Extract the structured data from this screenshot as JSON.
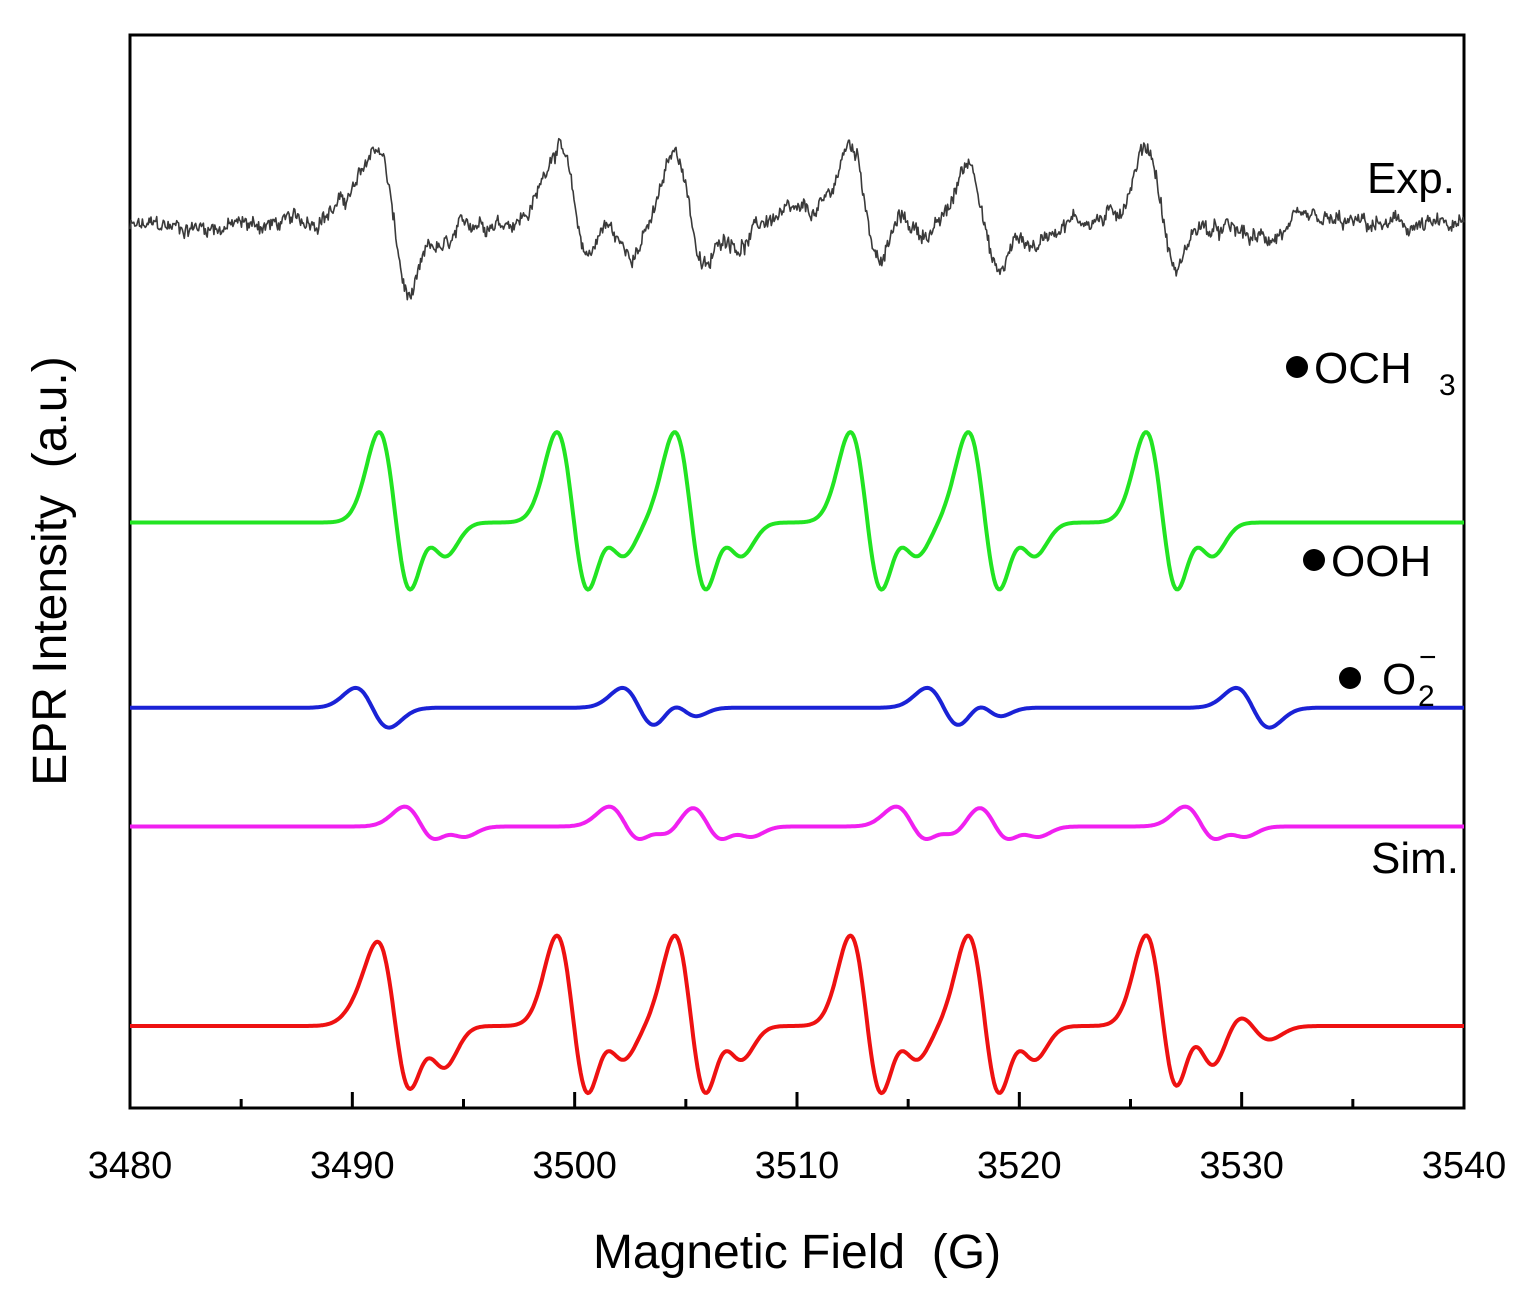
{
  "chart_data": {
    "type": "line",
    "title": "",
    "xlabel": "Magnetic Field  (G)",
    "ylabel": "EPR Intensity  (a.u.)",
    "xlim": [
      3480,
      3540
    ],
    "x_major_ticks": [
      3480,
      3490,
      3500,
      3510,
      3520,
      3530,
      3540
    ],
    "x_minor_step": 5,
    "y_ticks": "none",
    "grid": false,
    "legend": "inline labels at right of each trace",
    "series": [
      {
        "name": "Exp.",
        "label": "Exp.",
        "color": "#3a3a3a",
        "noisy": true,
        "baseline": 0.0,
        "scale": 0.82,
        "lines": [
          {
            "center": 3491.95,
            "amp": 1.0,
            "width": 0.75
          },
          {
            "center": 3493.65,
            "amp": 0.3,
            "width": 0.65
          },
          {
            "center": 3499.95,
            "amp": 0.9,
            "width": 0.75
          },
          {
            "center": 3501.65,
            "amp": 0.3,
            "width": 0.65
          },
          {
            "center": 3505.25,
            "amp": 0.9,
            "width": 0.75
          },
          {
            "center": 3506.95,
            "amp": 0.3,
            "width": 0.65
          },
          {
            "center": 3513.15,
            "amp": 0.9,
            "width": 0.75
          },
          {
            "center": 3514.85,
            "amp": 0.3,
            "width": 0.65
          },
          {
            "center": 3518.45,
            "amp": 0.9,
            "width": 0.75
          },
          {
            "center": 3520.15,
            "amp": 0.3,
            "width": 0.65
          },
          {
            "center": 3526.45,
            "amp": 0.95,
            "width": 0.75
          },
          {
            "center": 3528.15,
            "amp": 0.3,
            "width": 0.65
          },
          {
            "center": 3491.0,
            "amp": 0.25,
            "width": 1.2
          },
          {
            "center": 3502.0,
            "amp": 0.22,
            "width": 1.2
          },
          {
            "center": 3516.0,
            "amp": 0.22,
            "width": 1.2
          },
          {
            "center": 3529.5,
            "amp": 0.22,
            "width": 1.2
          }
        ]
      },
      {
        "name": "•OCH3",
        "label_main": "OCH",
        "label_sub": "3",
        "color": "#22e422",
        "baseline": -3.1,
        "scale": 0.95,
        "lines": [
          {
            "center": 3491.95,
            "amp": 1.0,
            "width": 0.75
          },
          {
            "center": 3493.65,
            "amp": 0.33,
            "width": 0.65
          },
          {
            "center": 3499.95,
            "amp": 1.0,
            "width": 0.75
          },
          {
            "center": 3501.65,
            "amp": 0.33,
            "width": 0.65
          },
          {
            "center": 3505.25,
            "amp": 1.0,
            "width": 0.75
          },
          {
            "center": 3506.95,
            "amp": 0.33,
            "width": 0.65
          },
          {
            "center": 3513.15,
            "amp": 1.0,
            "width": 0.75
          },
          {
            "center": 3514.85,
            "amp": 0.33,
            "width": 0.65
          },
          {
            "center": 3518.45,
            "amp": 1.0,
            "width": 0.75
          },
          {
            "center": 3520.15,
            "amp": 0.33,
            "width": 0.65
          },
          {
            "center": 3526.45,
            "amp": 1.0,
            "width": 0.75
          },
          {
            "center": 3528.15,
            "amp": 0.33,
            "width": 0.65
          }
        ]
      },
      {
        "name": "•OOH",
        "label_main": "OOH",
        "color": "#1a22d6",
        "baseline": -5.05,
        "scale": 0.95,
        "lines": [
          {
            "center": 3490.9,
            "amp": 0.22,
            "width": 0.75
          },
          {
            "center": 3502.9,
            "amp": 0.22,
            "width": 0.75
          },
          {
            "center": 3504.9,
            "amp": 0.09,
            "width": 0.6
          },
          {
            "center": 3516.6,
            "amp": 0.22,
            "width": 0.75
          },
          {
            "center": 3518.6,
            "amp": 0.09,
            "width": 0.6
          },
          {
            "center": 3530.5,
            "amp": 0.22,
            "width": 0.75
          }
        ]
      },
      {
        "name": "• O2−",
        "label_main": "O",
        "label_sub": "2",
        "label_sup": "−",
        "color": "#f020f0",
        "baseline": -6.3,
        "scale": 0.95,
        "lines": [
          {
            "center": 3493.1,
            "amp": 0.22,
            "width": 0.75
          },
          {
            "center": 3494.6,
            "amp": 0.09,
            "width": 0.6
          },
          {
            "center": 3502.3,
            "amp": 0.22,
            "width": 0.75
          },
          {
            "center": 3503.8,
            "amp": 0.09,
            "width": 0.6
          },
          {
            "center": 3506.0,
            "amp": 0.22,
            "width": 0.75
          },
          {
            "center": 3507.5,
            "amp": 0.09,
            "width": 0.6
          },
          {
            "center": 3515.2,
            "amp": 0.22,
            "width": 0.75
          },
          {
            "center": 3516.7,
            "amp": 0.09,
            "width": 0.6
          },
          {
            "center": 3518.9,
            "amp": 0.22,
            "width": 0.75
          },
          {
            "center": 3520.4,
            "amp": 0.09,
            "width": 0.6
          },
          {
            "center": 3528.2,
            "amp": 0.22,
            "width": 0.75
          },
          {
            "center": 3529.7,
            "amp": 0.09,
            "width": 0.6
          }
        ]
      },
      {
        "name": "Sim.",
        "label": "Sim.",
        "color": "#ee1111",
        "baseline": -8.4,
        "scale": 0.95,
        "lines": [
          {
            "center": 3491.95,
            "amp": 1.0,
            "width": 0.75
          },
          {
            "center": 3493.65,
            "amp": 0.33,
            "width": 0.65
          },
          {
            "center": 3499.95,
            "amp": 1.0,
            "width": 0.75
          },
          {
            "center": 3501.65,
            "amp": 0.33,
            "width": 0.65
          },
          {
            "center": 3505.25,
            "amp": 1.0,
            "width": 0.75
          },
          {
            "center": 3506.95,
            "amp": 0.33,
            "width": 0.65
          },
          {
            "center": 3513.15,
            "amp": 1.0,
            "width": 0.75
          },
          {
            "center": 3514.85,
            "amp": 0.33,
            "width": 0.65
          },
          {
            "center": 3518.45,
            "amp": 1.0,
            "width": 0.75
          },
          {
            "center": 3520.15,
            "amp": 0.33,
            "width": 0.65
          },
          {
            "center": 3526.45,
            "amp": 1.0,
            "width": 0.75
          },
          {
            "center": 3528.15,
            "amp": 0.33,
            "width": 0.65
          },
          {
            "center": 3490.9,
            "amp": 0.15,
            "width": 0.75
          },
          {
            "center": 3530.5,
            "amp": 0.15,
            "width": 0.75
          },
          {
            "center": 3493.1,
            "amp": 0.1,
            "width": 0.75
          },
          {
            "center": 3528.2,
            "amp": 0.1,
            "width": 0.75
          }
        ]
      }
    ]
  }
}
